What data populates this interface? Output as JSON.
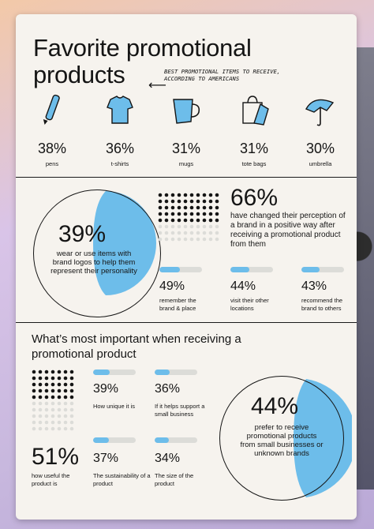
{
  "title": "Favorite promotional products",
  "note": "Best promotional items to receive, according to Americans",
  "products": [
    {
      "icon": "pen-icon",
      "pct": "38%",
      "label": "pens"
    },
    {
      "icon": "tshirt-icon",
      "pct": "36%",
      "label": "t-shirts"
    },
    {
      "icon": "mug-icon",
      "pct": "31%",
      "label": "mugs"
    },
    {
      "icon": "tote-bag-icon",
      "pct": "31%",
      "label": "tote bags"
    },
    {
      "icon": "umbrella-icon",
      "pct": "30%",
      "label": "umbrella"
    }
  ],
  "stat39": {
    "pct": "39%",
    "text": "wear or use items with brand logos to help them represent their personality",
    "value": 0.39
  },
  "stat66": {
    "pct": "66%",
    "text": "have changed their perception of a brand in a positive way after receiving a promotional product from them"
  },
  "mid_stats": [
    {
      "pct": "49%",
      "label": "remember the brand & place",
      "value": 0.49
    },
    {
      "pct": "44%",
      "label": "visit their other locations",
      "value": 0.44
    },
    {
      "pct": "43%",
      "label": "recommend the brand to others",
      "value": 0.43
    }
  ],
  "subtitle": "What’s most important when receiving a promotional product",
  "important": [
    {
      "pct": "39%",
      "label": "How unique it is",
      "value": 0.39
    },
    {
      "pct": "36%",
      "label": "If it helps support a small business",
      "value": 0.36
    },
    {
      "pct": "37%",
      "label": "The sustainability of a product",
      "value": 0.37
    },
    {
      "pct": "34%",
      "label": "The size of the product",
      "value": 0.34
    }
  ],
  "stat51": {
    "pct": "51%",
    "label": "how useful the product is"
  },
  "stat44": {
    "pct": "44%",
    "text": "prefer to receive promotional products from small businesses or unknown brands",
    "value": 0.44
  },
  "colors": {
    "accent": "#6dbdea",
    "ink": "#151515",
    "card": "#f6f3ee"
  }
}
